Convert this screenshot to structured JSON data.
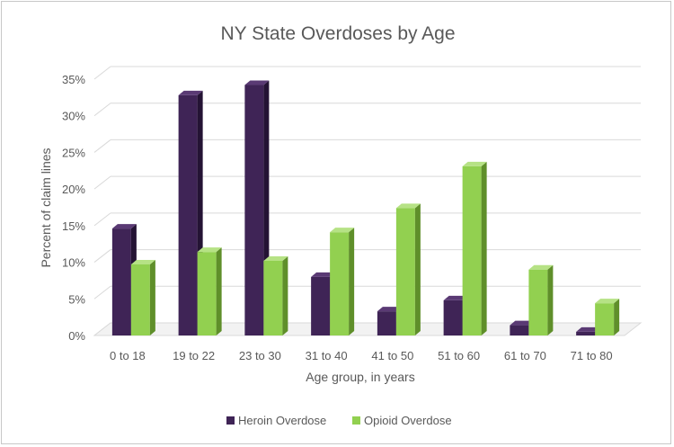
{
  "chart_data": {
    "type": "bar",
    "title": "NY State Overdoses by Age",
    "xlabel": "Age group, in years",
    "ylabel": "Percent of claim lines",
    "categories": [
      "0 to 18",
      "19 to 22",
      "23 to 30",
      "31 to 40",
      "41 to 50",
      "51 to 60",
      "61 to 70",
      "71 to 80"
    ],
    "series": [
      {
        "name": "Heroin Overdose",
        "values": [
          14.6,
          32.8,
          34.2,
          8.0,
          3.3,
          4.8,
          1.4,
          0.5
        ],
        "color": "#3f2456",
        "side_color": "#241334",
        "top_color": "#5a3a74"
      },
      {
        "name": "Opioid Overdose",
        "values": [
          9.7,
          11.4,
          10.2,
          14.1,
          17.4,
          23.1,
          9.0,
          4.4
        ],
        "color": "#92d050",
        "side_color": "#5f8f2a",
        "top_color": "#b6e285"
      }
    ],
    "yticks": [
      "0%",
      "5%",
      "10%",
      "15%",
      "20%",
      "25%",
      "30%",
      "35%"
    ],
    "ylim": [
      0,
      35
    ],
    "grid": true,
    "legend_position": "bottom",
    "style": "3d-column"
  }
}
